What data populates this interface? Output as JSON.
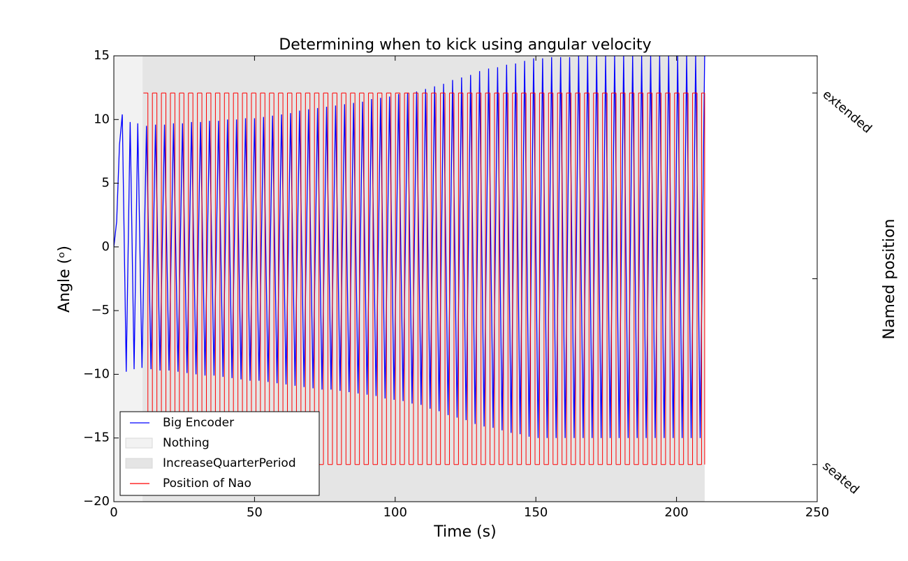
{
  "chart_data": {
    "type": "line",
    "title": "Determining when to kick using angular velocity",
    "xlabel": "Time (s)",
    "ylabel": "Angle (ᵒ)",
    "y2label": "Named position",
    "xlim": [
      0,
      250
    ],
    "xticks": [
      0,
      50,
      100,
      150,
      200,
      250
    ],
    "ylim": [
      -20,
      15
    ],
    "yticks": [
      {
        "value": -20,
        "label": "−20"
      },
      {
        "value": -15,
        "label": "−15"
      },
      {
        "value": -10,
        "label": "−10"
      },
      {
        "value": -5,
        "label": "−5"
      },
      0,
      5,
      10,
      15
    ],
    "y2lim": [
      -0.1,
      1.1
    ],
    "y2ticks": [
      {
        "value": 0,
        "label": "seated"
      },
      {
        "value": 0.5,
        "label": null
      },
      {
        "value": 1,
        "label": "extended"
      }
    ],
    "legend": "lower left",
    "spans": [
      {
        "name": "Nothing",
        "color": "#f2f2f2",
        "start": 0,
        "end": 10.2
      },
      {
        "name": "IncreaseQuarterPeriod",
        "color": "#e5e5e5",
        "start": 10.2,
        "end": 210
      }
    ],
    "series": [
      {
        "name": "Big Encoder",
        "color": "#0000ff",
        "x": [
          0,
          1,
          2,
          3,
          4.4,
          5.8,
          7.2,
          8.5,
          10.0,
          11.6,
          13.2,
          14.8,
          16.4,
          18.0,
          19.6,
          21.2,
          22.8,
          24.4,
          26.0,
          27.6,
          29.2,
          30.8,
          32.4,
          34.0,
          35.6,
          37.2,
          38.8,
          40.4,
          42.0,
          43.6,
          45.2,
          46.8,
          48.4,
          50.0,
          51.6,
          53.2,
          54.8,
          56.4,
          58.0,
          59.6,
          61.2,
          62.8,
          64.4,
          66.0,
          67.6,
          69.2,
          70.8,
          72.4,
          74.0,
          75.6,
          77.2,
          78.8,
          80.4,
          82.0,
          83.6,
          85.2,
          86.8,
          88.4,
          90.0,
          91.6,
          93.2,
          94.8,
          96.4,
          98.0,
          99.6,
          101.2,
          102.8,
          104.4,
          106.0,
          107.6,
          109.2,
          110.8,
          112.4,
          114.0,
          115.6,
          117.2,
          118.8,
          120.4,
          122.0,
          123.6,
          125.2,
          126.8,
          128.4,
          130.0,
          131.6,
          133.2,
          134.8,
          136.4,
          138.0,
          139.6,
          141.2,
          142.8,
          144.4,
          146.0,
          147.6,
          149.2,
          150.8,
          152.4,
          154.0,
          155.6,
          157.2,
          158.8,
          160.4,
          162.0,
          163.6,
          165.2,
          166.8,
          168.4,
          170.0,
          171.6,
          173.2,
          174.8,
          176.4,
          178.0,
          179.6,
          181.2,
          182.8,
          184.4,
          186.0,
          187.6,
          189.2,
          190.8,
          192.4,
          194.0,
          195.6,
          197.2,
          198.8,
          200.4,
          202.0,
          203.6,
          205.2,
          206.8,
          208.4,
          210.0
        ],
        "values": [
          0,
          2,
          8,
          10.4,
          -9.8,
          9.8,
          -9.6,
          9.7,
          -9.5,
          9.5,
          -9.6,
          9.6,
          -9.7,
          9.6,
          -9.7,
          9.7,
          -9.8,
          9.7,
          -9.9,
          9.8,
          -10.0,
          9.8,
          -10.1,
          9.9,
          -10.1,
          9.9,
          -10.2,
          10.0,
          -10.3,
          10.0,
          -10.4,
          10.1,
          -10.5,
          10.1,
          -10.5,
          10.2,
          -10.6,
          10.3,
          -10.7,
          10.4,
          -10.8,
          10.5,
          -10.9,
          10.7,
          -11.0,
          10.8,
          -11.1,
          10.9,
          -11.2,
          11.0,
          -11.2,
          11.1,
          -11.3,
          11.2,
          -11.4,
          11.3,
          -11.5,
          11.4,
          -11.6,
          11.6,
          -11.7,
          11.7,
          -11.9,
          11.8,
          -12.0,
          12.0,
          -12.1,
          12.1,
          -12.3,
          12.2,
          -12.4,
          12.4,
          -12.7,
          12.6,
          -12.9,
          12.8,
          -13.2,
          13.1,
          -13.4,
          13.3,
          -13.6,
          13.5,
          -13.9,
          13.8,
          -14.1,
          14.0,
          -14.2,
          14.1,
          -14.4,
          14.3,
          -14.6,
          14.4,
          -14.7,
          14.6,
          -14.9,
          14.8,
          -15.0,
          14.8,
          -15.0,
          14.9,
          -15.0,
          14.9,
          -15.0,
          14.9,
          -15.0,
          15.0,
          -15.0,
          15.0,
          -15.0,
          15.0,
          -15.0,
          15.0,
          -15.0,
          15.0,
          -15.0,
          15.0,
          -15.0,
          15.0,
          -15.0,
          15.0,
          -15.0,
          15.0,
          -15.0,
          15.0,
          -15.0,
          15.0,
          -15.0,
          15.0,
          -15.0,
          15.0,
          -15.0,
          15.0,
          -15.0,
          15.0
        ]
      },
      {
        "name": "Position of Nao",
        "color": "#ff0000",
        "axis": "y2",
        "drawstyle": "steps-post",
        "x": [
          10.5,
          12.1,
          13.7,
          15.3,
          16.9,
          18.5,
          20.1,
          21.7,
          23.3,
          24.9,
          26.5,
          28.1,
          29.7,
          31.3,
          32.9,
          34.5,
          36.1,
          37.7,
          39.3,
          40.9,
          42.5,
          44.1,
          45.7,
          47.3,
          48.9,
          50.5,
          52.1,
          53.7,
          55.3,
          56.9,
          58.5,
          60.1,
          61.7,
          63.3,
          64.9,
          66.5,
          68.1,
          69.7,
          71.3,
          72.9,
          74.5,
          76.1,
          77.7,
          79.3,
          80.9,
          82.5,
          84.1,
          85.7,
          87.3,
          88.9,
          90.5,
          92.1,
          93.7,
          95.3,
          96.9,
          98.5,
          100.1,
          101.7,
          103.3,
          104.9,
          106.5,
          108.1,
          109.7,
          111.3,
          112.9,
          114.5,
          116.1,
          117.7,
          119.3,
          120.9,
          122.5,
          124.1,
          125.7,
          127.3,
          128.9,
          130.5,
          132.1,
          133.7,
          135.3,
          136.9,
          138.5,
          140.1,
          141.7,
          143.3,
          144.9,
          146.5,
          148.1,
          149.7,
          151.3,
          152.9,
          154.5,
          156.1,
          157.7,
          159.3,
          160.9,
          162.5,
          164.1,
          165.7,
          167.3,
          168.9,
          170.5,
          172.1,
          173.7,
          175.3,
          176.9,
          178.5,
          180.1,
          181.7,
          183.3,
          184.9,
          186.5,
          188.1,
          189.7,
          191.3,
          192.9,
          194.5,
          196.1,
          197.7,
          199.3,
          200.9,
          202.5,
          204.1,
          205.7,
          207.3,
          208.9,
          210.0
        ],
        "values": [
          1,
          0,
          1,
          0,
          1,
          0,
          1,
          0,
          1,
          0,
          1,
          0,
          1,
          0,
          1,
          0,
          1,
          0,
          1,
          0,
          1,
          0,
          1,
          0,
          1,
          0,
          1,
          0,
          1,
          0,
          1,
          0,
          1,
          0,
          1,
          0,
          1,
          0,
          1,
          0,
          1,
          0,
          1,
          0,
          1,
          0,
          1,
          0,
          1,
          0,
          1,
          0,
          1,
          0,
          1,
          0,
          1,
          0,
          1,
          0,
          1,
          0,
          1,
          0,
          1,
          0,
          1,
          0,
          1,
          0,
          1,
          0,
          1,
          0,
          1,
          0,
          1,
          0,
          1,
          0,
          1,
          0,
          1,
          0,
          1,
          0,
          1,
          0,
          1,
          0,
          1,
          0,
          1,
          0,
          1,
          0,
          1,
          0,
          1,
          0,
          1,
          0,
          1,
          0,
          1,
          0,
          1,
          0,
          1,
          0,
          1,
          0,
          1,
          0,
          1,
          0,
          1,
          0,
          1,
          0,
          1,
          0,
          1,
          0,
          1,
          0
        ]
      }
    ]
  }
}
